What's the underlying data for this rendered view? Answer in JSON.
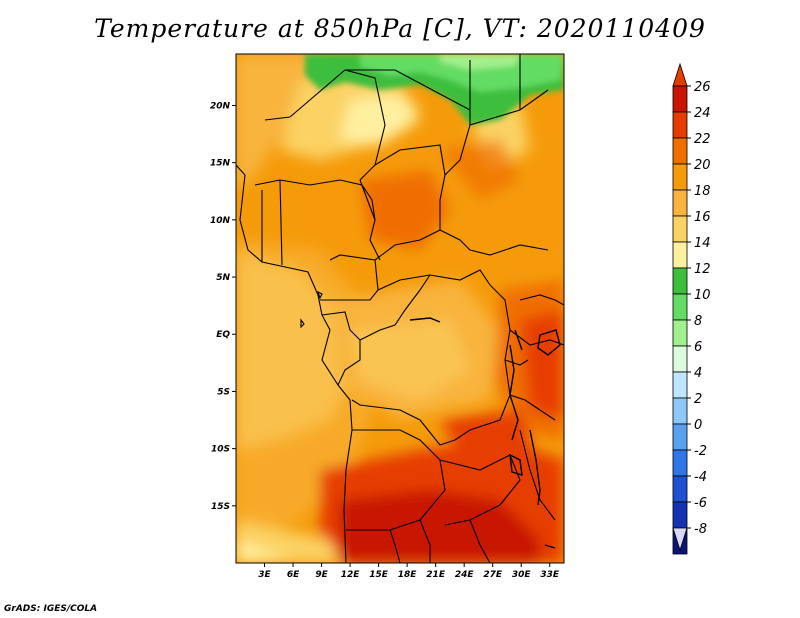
{
  "title": "Temperature at 850hPa [C], VT: 2020110409",
  "credit": "GrADS: IGES/COLA",
  "map": {
    "lon_ticks": [
      "3E",
      "6E",
      "9E",
      "12E",
      "15E",
      "18E",
      "21E",
      "24E",
      "27E",
      "30E",
      "33E"
    ],
    "lat_ticks": [
      "20N",
      "15N",
      "10N",
      "5N",
      "EQ",
      "5S",
      "10S",
      "15S"
    ],
    "lon_values": [
      3,
      6,
      9,
      12,
      15,
      18,
      21,
      24,
      27,
      30,
      33
    ],
    "lat_values": [
      20,
      15,
      10,
      5,
      0,
      -5,
      -10,
      -15
    ],
    "lon_range": [
      0,
      34.5
    ],
    "lat_range": [
      -20,
      24.5
    ]
  },
  "colorbar": {
    "labels": [
      "26",
      "24",
      "22",
      "20",
      "18",
      "16",
      "14",
      "12",
      "10",
      "8",
      "6",
      "4",
      "2",
      "0",
      "-2",
      "-4",
      "-6",
      "-8"
    ],
    "colors": [
      "#c81400",
      "#e63c00",
      "#f06e00",
      "#f59b0a",
      "#f8b43c",
      "#fbd264",
      "#fff0a0",
      "#3cbe3c",
      "#64dc64",
      "#a0f08c",
      "#dcfadc",
      "#bee6ff",
      "#8cc8fa",
      "#5aa0f0",
      "#2d78e6",
      "#1e50d2",
      "#1432b4",
      "#0a1478"
    ],
    "top_color": "#e63c00",
    "bottom_color": "#d8d8f8"
  }
}
